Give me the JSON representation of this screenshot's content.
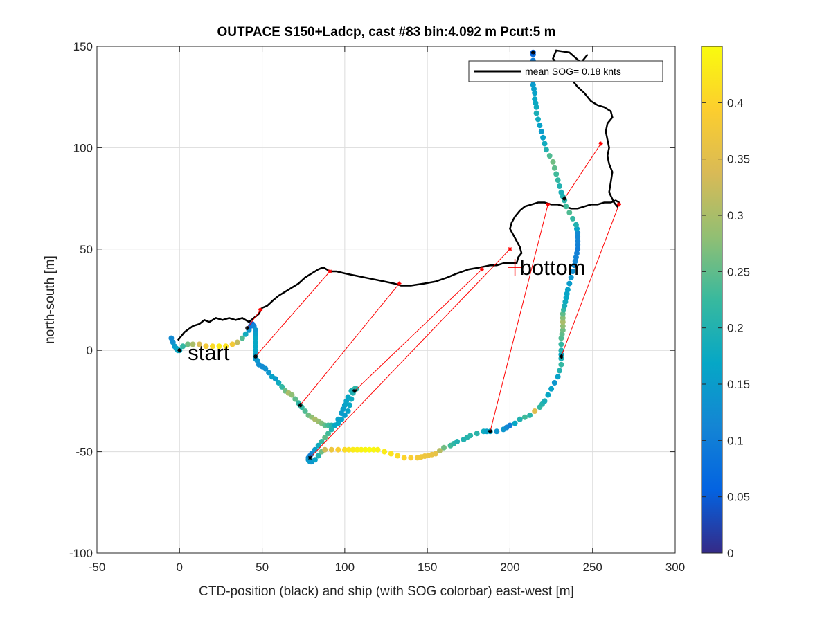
{
  "chart_data": {
    "type": "scatter",
    "title": "OUTPACE S150+Ladcp, cast #83 bin:4.092 m  Pcut:5 m",
    "xlabel": "CTD-position (black) and ship (with SOG colorbar) east-west [m]",
    "ylabel": "north-south [m]",
    "xlim": [
      -50,
      300
    ],
    "ylim": [
      -100,
      150
    ],
    "xticks": [
      "-50",
      "0",
      "50",
      "100",
      "150",
      "200",
      "250",
      "300"
    ],
    "yticks": [
      "150",
      "100",
      "50",
      "0",
      "-50",
      "-100"
    ],
    "grid": true,
    "legend": {
      "position": "top-right",
      "label": "mean SOG=  0.18 knts"
    },
    "colorbar": {
      "range": [
        0,
        0.45
      ],
      "ticks": [
        "0",
        "0.05",
        "0.1",
        "0.15",
        "0.2",
        "0.25",
        "0.3",
        "0.35",
        "0.4"
      ],
      "colormap": [
        "#352a87",
        "#0363e1",
        "#1485d4",
        "#06a7c6",
        "#38b99e",
        "#92bf73",
        "#d9ba56",
        "#fcce2e",
        "#f9fb0e"
      ]
    },
    "annotations": [
      {
        "text": "start",
        "x": 5,
        "y": -1
      },
      {
        "text": "bottom",
        "x": 206,
        "y": 41
      }
    ],
    "bottom_marker": {
      "x": 203,
      "y": 41,
      "color": "#ff0000"
    },
    "ctd_track": {
      "color": "#000000",
      "points": [
        [
          -1,
          5
        ],
        [
          3,
          9
        ],
        [
          8,
          12
        ],
        [
          12,
          13
        ],
        [
          15,
          15
        ],
        [
          18,
          14
        ],
        [
          22,
          16
        ],
        [
          26,
          15
        ],
        [
          30,
          16
        ],
        [
          34,
          15
        ],
        [
          38,
          16
        ],
        [
          42,
          14
        ],
        [
          45,
          16
        ],
        [
          48,
          18
        ],
        [
          50,
          21
        ],
        [
          53,
          22
        ],
        [
          57,
          25
        ],
        [
          60,
          27
        ],
        [
          64,
          29
        ],
        [
          68,
          31
        ],
        [
          72,
          33
        ],
        [
          76,
          36
        ],
        [
          80,
          38
        ],
        [
          84,
          40
        ],
        [
          87,
          41
        ],
        [
          89,
          40
        ],
        [
          91,
          39
        ],
        [
          95,
          39
        ],
        [
          100,
          38
        ],
        [
          106,
          37
        ],
        [
          112,
          36
        ],
        [
          118,
          35
        ],
        [
          124,
          34
        ],
        [
          130,
          33
        ],
        [
          134,
          32
        ],
        [
          140,
          32
        ],
        [
          148,
          33
        ],
        [
          155,
          34
        ],
        [
          162,
          36
        ],
        [
          168,
          38
        ],
        [
          175,
          40
        ],
        [
          182,
          41
        ],
        [
          188,
          42
        ],
        [
          192,
          42
        ],
        [
          196,
          43
        ],
        [
          200,
          43
        ],
        [
          204,
          43
        ],
        [
          205,
          46
        ],
        [
          207,
          48
        ],
        [
          206,
          51
        ],
        [
          204,
          54
        ],
        [
          202,
          57
        ],
        [
          200,
          60
        ],
        [
          201,
          63
        ],
        [
          203,
          66
        ],
        [
          206,
          69
        ],
        [
          209,
          71
        ],
        [
          213,
          72
        ],
        [
          217,
          73
        ],
        [
          221,
          73
        ],
        [
          225,
          72
        ],
        [
          229,
          72
        ],
        [
          233,
          71
        ],
        [
          237,
          70
        ],
        [
          241,
          70
        ],
        [
          245,
          71
        ],
        [
          249,
          72
        ],
        [
          253,
          72
        ],
        [
          257,
          73
        ],
        [
          261,
          73
        ],
        [
          264,
          74
        ],
        [
          266,
          73
        ],
        [
          265,
          71
        ],
        [
          263,
          73
        ],
        [
          260,
          78
        ],
        [
          261,
          83
        ],
        [
          262,
          88
        ],
        [
          260,
          92
        ],
        [
          259,
          96
        ],
        [
          260,
          100
        ],
        [
          259,
          104
        ],
        [
          258,
          108
        ],
        [
          259,
          112
        ],
        [
          262,
          115
        ],
        [
          261,
          118
        ],
        [
          257,
          120
        ],
        [
          253,
          121
        ],
        [
          249,
          123
        ],
        [
          245,
          127
        ],
        [
          241,
          130
        ],
        [
          238,
          133
        ],
        [
          235,
          136
        ],
        [
          233,
          138
        ],
        [
          231,
          140
        ],
        [
          228,
          142
        ],
        [
          226,
          144
        ],
        [
          227,
          146
        ],
        [
          228,
          148
        ],
        [
          236,
          147
        ],
        [
          243,
          142
        ],
        [
          247,
          146
        ]
      ]
    },
    "ship_track": {
      "points": [
        [
          -5,
          6,
          0.12
        ],
        [
          -4,
          4,
          0.13
        ],
        [
          -3,
          2,
          0.15
        ],
        [
          -2,
          1,
          0.16
        ],
        [
          -1,
          0,
          0.17
        ],
        [
          0,
          0,
          0.18
        ],
        [
          2,
          2,
          0.22
        ],
        [
          5,
          3,
          0.26
        ],
        [
          8,
          3,
          0.3
        ],
        [
          12,
          3,
          0.34
        ],
        [
          16,
          2,
          0.38
        ],
        [
          20,
          2,
          0.41
        ],
        [
          24,
          2,
          0.43
        ],
        [
          28,
          2,
          0.42
        ],
        [
          32,
          3,
          0.38
        ],
        [
          35,
          4,
          0.32
        ],
        [
          38,
          6,
          0.24
        ],
        [
          40,
          8,
          0.18
        ],
        [
          42,
          10,
          0.14
        ],
        [
          43,
          12,
          0.09
        ],
        [
          44,
          13,
          0.07
        ],
        [
          45,
          12,
          0.11
        ],
        [
          46,
          10,
          0.14
        ],
        [
          46,
          6,
          0.17
        ],
        [
          46,
          2,
          0.17
        ],
        [
          46,
          -2,
          0.16
        ],
        [
          46,
          -4,
          0.15
        ],
        [
          47,
          -5,
          0.14
        ],
        [
          48,
          -7,
          0.13
        ],
        [
          50,
          -8,
          0.12
        ],
        [
          52,
          -9,
          0.13
        ],
        [
          54,
          -11,
          0.14
        ],
        [
          56,
          -13,
          0.16
        ],
        [
          58,
          -14,
          0.15
        ],
        [
          60,
          -16,
          0.18
        ],
        [
          62,
          -18,
          0.22
        ],
        [
          64,
          -20,
          0.26
        ],
        [
          66,
          -21,
          0.3
        ],
        [
          68,
          -22,
          0.28
        ],
        [
          70,
          -24,
          0.25
        ],
        [
          72,
          -26,
          0.22
        ],
        [
          73,
          -27,
          0.2
        ],
        [
          74,
          -28,
          0.22
        ],
        [
          76,
          -30,
          0.24
        ],
        [
          78,
          -32,
          0.26
        ],
        [
          80,
          -33,
          0.28
        ],
        [
          82,
          -34,
          0.3
        ],
        [
          84,
          -35,
          0.29
        ],
        [
          86,
          -36,
          0.27
        ],
        [
          88,
          -37,
          0.25
        ],
        [
          90,
          -37,
          0.23
        ],
        [
          92,
          -37,
          0.21
        ],
        [
          94,
          -37,
          0.19
        ],
        [
          96,
          -36,
          0.17
        ],
        [
          98,
          -34,
          0.16
        ],
        [
          100,
          -32,
          0.15
        ],
        [
          102,
          -30,
          0.16
        ],
        [
          103,
          -27,
          0.17
        ],
        [
          104,
          -24,
          0.18
        ],
        [
          105,
          -21,
          0.2
        ],
        [
          106,
          -19,
          0.22
        ],
        [
          107,
          -19,
          0.21
        ],
        [
          104,
          -20,
          0.19
        ],
        [
          102,
          -23,
          0.17
        ],
        [
          100,
          -27,
          0.16
        ],
        [
          98,
          -31,
          0.15
        ],
        [
          96,
          -34,
          0.16
        ],
        [
          94,
          -37,
          0.17
        ],
        [
          92,
          -39,
          0.2
        ],
        [
          90,
          -41,
          0.23
        ],
        [
          88,
          -43,
          0.25
        ],
        [
          86,
          -45,
          0.22
        ],
        [
          84,
          -47,
          0.18
        ],
        [
          82,
          -49,
          0.15
        ],
        [
          80,
          -51,
          0.12
        ],
        [
          79,
          -52,
          0.1
        ],
        [
          78,
          -53,
          0.12
        ],
        [
          78,
          -54,
          0.14
        ],
        [
          79,
          -55,
          0.15
        ],
        [
          80,
          -55,
          0.14
        ],
        [
          82,
          -54,
          0.16
        ],
        [
          84,
          -52,
          0.2
        ],
        [
          86,
          -50,
          0.26
        ],
        [
          88,
          -49,
          0.33
        ],
        [
          92,
          -49,
          0.37
        ],
        [
          96,
          -49,
          0.39
        ],
        [
          100,
          -49,
          0.41
        ],
        [
          105,
          -49,
          0.43
        ],
        [
          110,
          -49,
          0.44
        ],
        [
          115,
          -49,
          0.45
        ],
        [
          120,
          -49,
          0.44
        ],
        [
          124,
          -50,
          0.43
        ],
        [
          128,
          -51,
          0.42
        ],
        [
          132,
          -52,
          0.41
        ],
        [
          136,
          -53,
          0.4
        ],
        [
          140,
          -53,
          0.39
        ],
        [
          144,
          -53,
          0.38
        ],
        [
          155,
          -51,
          0.36
        ],
        [
          160,
          -48,
          0.26
        ],
        [
          164,
          -47,
          0.23
        ],
        [
          168,
          -45,
          0.2
        ],
        [
          172,
          -44,
          0.2
        ],
        [
          176,
          -42,
          0.21
        ],
        [
          180,
          -41,
          0.21
        ],
        [
          184,
          -40,
          0.18
        ],
        [
          186,
          -40,
          0.16
        ],
        [
          188,
          -40,
          0.17
        ],
        [
          192,
          -40,
          0.14
        ],
        [
          196,
          -39,
          0.14
        ],
        [
          198,
          -38,
          0.12
        ],
        [
          200,
          -37,
          0.1
        ],
        [
          203,
          -36,
          0.17
        ],
        [
          206,
          -34,
          0.2
        ],
        [
          209,
          -33,
          0.23
        ],
        [
          212,
          -32,
          0.21
        ],
        [
          215,
          -30,
          0.35
        ],
        [
          218,
          -28,
          0.22
        ],
        [
          221,
          -25,
          0.19
        ],
        [
          223,
          -22,
          0.17
        ],
        [
          225,
          -19,
          0.16
        ],
        [
          227,
          -16,
          0.14
        ],
        [
          229,
          -13,
          0.16
        ],
        [
          230,
          -10,
          0.2
        ],
        [
          231,
          -7,
          0.22
        ],
        [
          231,
          -4,
          0.19
        ],
        [
          231,
          -2,
          0.17
        ],
        [
          231,
          0,
          0.2
        ],
        [
          231,
          3,
          0.22
        ],
        [
          231,
          6,
          0.24
        ],
        [
          232,
          10,
          0.26
        ],
        [
          232,
          14,
          0.3
        ],
        [
          232,
          18,
          0.25
        ],
        [
          233,
          22,
          0.19
        ],
        [
          234,
          26,
          0.17
        ],
        [
          235,
          30,
          0.16
        ],
        [
          236,
          33,
          0.15
        ],
        [
          237,
          36,
          0.14
        ],
        [
          238,
          39,
          0.13
        ],
        [
          239,
          42,
          0.12
        ],
        [
          240,
          46,
          0.11
        ],
        [
          241,
          50,
          0.1
        ],
        [
          241,
          54,
          0.11
        ],
        [
          241,
          58,
          0.12
        ],
        [
          240,
          62,
          0.2
        ],
        [
          238,
          65,
          0.22
        ],
        [
          236,
          68,
          0.24
        ],
        [
          234,
          71,
          0.23
        ],
        [
          233,
          74,
          0.21
        ],
        [
          232,
          76,
          0.2
        ],
        [
          231,
          78,
          0.19
        ],
        [
          230,
          81,
          0.2
        ],
        [
          229,
          84,
          0.22
        ],
        [
          228,
          87,
          0.23
        ],
        [
          227,
          90,
          0.25
        ],
        [
          226,
          93,
          0.26
        ],
        [
          224,
          96,
          0.24
        ],
        [
          222,
          99,
          0.2
        ],
        [
          221,
          102,
          0.18
        ],
        [
          220,
          105,
          0.16
        ],
        [
          219,
          108,
          0.15
        ],
        [
          218,
          111,
          0.16
        ],
        [
          217,
          114,
          0.18
        ],
        [
          216,
          117,
          0.19
        ],
        [
          216,
          120,
          0.18
        ],
        [
          215,
          124,
          0.17
        ],
        [
          215,
          127,
          0.16
        ],
        [
          214,
          131,
          0.15
        ],
        [
          214,
          135,
          0.13
        ],
        [
          214,
          139,
          0.12
        ],
        [
          214,
          143,
          0.1
        ],
        [
          214,
          146,
          0.07
        ],
        [
          214,
          147,
          0.05
        ]
      ]
    },
    "ctd_markers": [
      [
        0,
        0
      ],
      [
        41,
        11
      ],
      [
        46,
        -3
      ],
      [
        73,
        -27
      ],
      [
        79,
        -53
      ],
      [
        106,
        -20
      ],
      [
        188,
        -40
      ],
      [
        231,
        -3
      ],
      [
        233,
        75
      ],
      [
        214,
        147
      ]
    ],
    "ship_markers": [
      [
        49,
        20
      ],
      [
        91,
        39
      ],
      [
        133,
        33
      ],
      [
        183,
        40
      ],
      [
        200,
        50
      ],
      [
        223,
        72
      ],
      [
        255,
        102
      ],
      [
        266,
        72
      ]
    ],
    "links": [
      [
        [
          41,
          11
        ],
        [
          49,
          20
        ]
      ],
      [
        [
          46,
          -3
        ],
        [
          91,
          39
        ]
      ],
      [
        [
          73,
          -27
        ],
        [
          133,
          33
        ]
      ],
      [
        [
          106,
          -20
        ],
        [
          183,
          40
        ]
      ],
      [
        [
          79,
          -53
        ],
        [
          200,
          50
        ]
      ],
      [
        [
          188,
          -40
        ],
        [
          223,
          72
        ]
      ],
      [
        [
          231,
          -3
        ],
        [
          266,
          72
        ]
      ],
      [
        [
          233,
          75
        ],
        [
          255,
          102
        ]
      ]
    ],
    "link_color": "#ff0000"
  }
}
